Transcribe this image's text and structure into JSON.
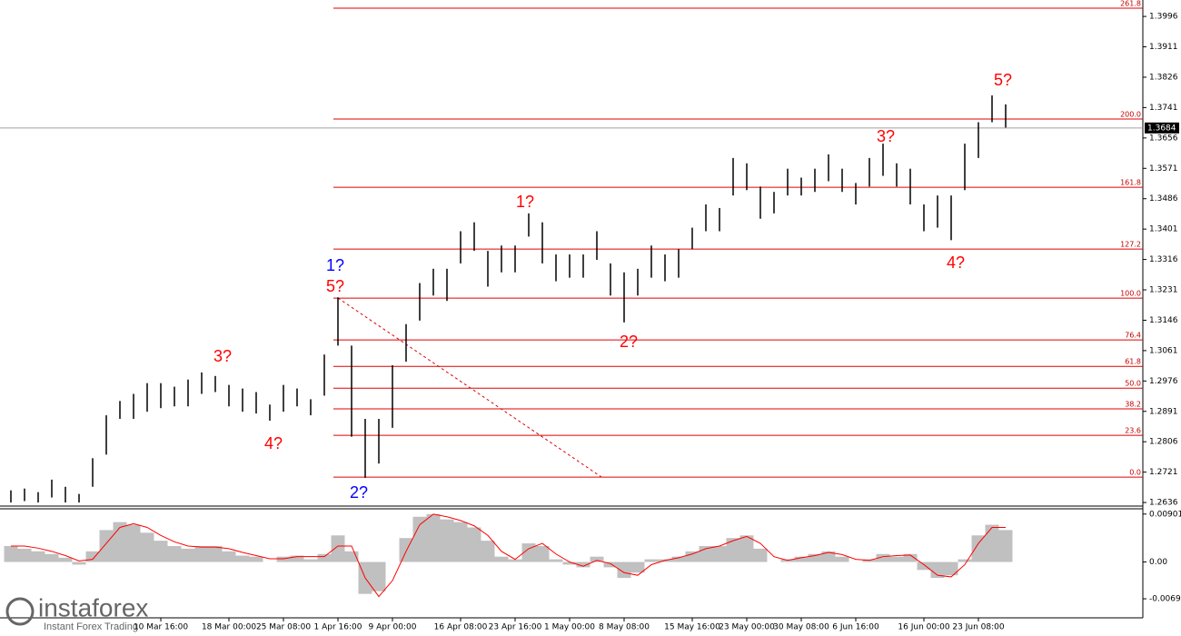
{
  "chart_data": [
    {
      "type": "ohlc",
      "watermark": "instaforex",
      "watermark_sub": "Instant Forex Trading",
      "categories": [
        null,
        null,
        null,
        null,
        null,
        null,
        null,
        null,
        null,
        null,
        null,
        "10 Mar 16:00",
        null,
        null,
        null,
        null,
        "18 Mar 00:00",
        null,
        null,
        null,
        "25 Mar 08:00",
        null,
        null,
        null,
        "1 Apr 16:00",
        null,
        null,
        null,
        "9 Apr 00:00",
        null,
        null,
        null,
        null,
        "16 Apr 08:00",
        null,
        null,
        null,
        "23 Apr 16:00",
        null,
        null,
        null,
        "1 May 00:00",
        null,
        null,
        null,
        "8 May 08:00",
        null,
        null,
        null,
        null,
        "15 May 16:00",
        null,
        null,
        null,
        "23 May 00:00",
        null,
        null,
        null,
        "30 May 08:00",
        null,
        null,
        null,
        "6 Jun 16:00",
        null,
        null,
        null,
        null,
        "16 Jun 00:00",
        null,
        null,
        null,
        "23 Jun 08:00",
        null,
        null
      ],
      "series": [
        {
          "name": "High",
          "color": "#000000",
          "values": [
            1.267,
            1.2675,
            1.2665,
            1.27,
            1.268,
            1.266,
            1.276,
            1.288,
            1.292,
            1.294,
            1.297,
            1.297,
            1.296,
            1.298,
            1.3,
            1.299,
            1.2965,
            1.2955,
            1.2945,
            1.291,
            1.2965,
            1.2955,
            1.2925,
            1.305,
            1.321,
            1.3075,
            1.287,
            1.287,
            1.302,
            1.3135,
            1.325,
            1.329,
            1.329,
            1.3395,
            1.342,
            1.334,
            1.3355,
            1.3355,
            1.3445,
            1.342,
            1.333,
            1.333,
            1.333,
            1.3395,
            1.3305,
            1.328,
            1.329,
            1.3355,
            1.333,
            1.3345,
            1.3405,
            1.347,
            1.346,
            1.36,
            1.3585,
            1.352,
            1.3505,
            1.357,
            1.3545,
            1.357,
            1.361,
            1.357,
            1.353,
            1.36,
            1.364,
            1.3585,
            1.357,
            1.347,
            1.3495,
            1.3495,
            1.364,
            1.37,
            1.3775,
            1.375
          ]
        },
        {
          "name": "Low",
          "color": "#000000",
          "values": [
            1.2636,
            1.264,
            1.2636,
            1.265,
            1.2636,
            1.2636,
            1.268,
            1.277,
            1.287,
            1.287,
            1.289,
            1.29,
            1.2905,
            1.2905,
            1.294,
            1.2945,
            1.2905,
            1.289,
            1.2885,
            1.2865,
            1.289,
            1.2905,
            1.288,
            1.2935,
            1.3075,
            1.282,
            1.2705,
            1.2745,
            1.2845,
            1.303,
            1.3145,
            1.3215,
            1.32,
            1.3305,
            1.334,
            1.324,
            1.328,
            1.328,
            1.338,
            1.3305,
            1.3255,
            1.3265,
            1.3265,
            1.3315,
            1.3215,
            1.314,
            1.3215,
            1.3265,
            1.3255,
            1.3265,
            1.3345,
            1.3395,
            1.3395,
            1.3495,
            1.351,
            1.343,
            1.3445,
            1.3495,
            1.3495,
            1.3505,
            1.3535,
            1.3505,
            1.347,
            1.352,
            1.355,
            1.352,
            1.347,
            1.3395,
            1.3405,
            1.337,
            1.351,
            1.36,
            1.37,
            1.3685
          ]
        }
      ],
      "ylim": [
        1.2626,
        1.4042
      ],
      "yticks": [
        1.2636,
        1.2721,
        1.2806,
        1.2891,
        1.2976,
        1.3061,
        1.3146,
        1.3231,
        1.3316,
        1.3401,
        1.3486,
        1.3571,
        1.3656,
        1.3741,
        1.3826,
        1.3911,
        1.3996
      ],
      "current_price": 1.3684,
      "fib_levels": [
        {
          "label": "0.0",
          "price": 1.2707
        },
        {
          "label": "23.6",
          "price": 1.2824
        },
        {
          "label": "38.2",
          "price": 1.2898
        },
        {
          "label": "50.0",
          "price": 1.2956
        },
        {
          "label": "61.8",
          "price": 1.3017
        },
        {
          "label": "76.4",
          "price": 1.3091
        },
        {
          "label": "100.0",
          "price": 1.3208
        },
        {
          "label": "127.2",
          "price": 1.3345
        },
        {
          "label": "161.8",
          "price": 1.3518
        },
        {
          "label": "200.0",
          "price": 1.3709
        },
        {
          "label": "261.8",
          "price": 1.4019
        }
      ],
      "fib_color": "#e00000",
      "annotations": [
        {
          "text": "1?",
          "color": "#0000ff"
        },
        {
          "text": "5?",
          "color": "#ff0000"
        },
        {
          "text": "2?",
          "color": "#0000ff"
        },
        {
          "text": "3?",
          "color": "#ff0000"
        },
        {
          "text": "4?",
          "color": "#ff0000"
        },
        {
          "text": "1?",
          "color": "#ff0000"
        },
        {
          "text": "2?",
          "color": "#ff0000"
        },
        {
          "text": "3?",
          "color": "#ff0000"
        },
        {
          "text": "4?",
          "color": "#ff0000"
        },
        {
          "text": "5?",
          "color": "#ff0000"
        }
      ]
    },
    {
      "type": "macd",
      "series": [
        {
          "name": "Histogram",
          "color": "#c0c0c0",
          "values": [
            0.003,
            0.0025,
            0.002,
            0.0015,
            0.0008,
            -0.0005,
            0.002,
            0.006,
            0.0075,
            0.007,
            0.0055,
            0.004,
            0.003,
            0.0025,
            0.003,
            0.003,
            0.002,
            0.0012,
            0.001,
            0.0,
            0.001,
            0.0012,
            0.0005,
            0.0015,
            0.005,
            0.002,
            -0.006,
            -0.0055,
            0.0,
            0.0045,
            0.0085,
            0.009,
            0.008,
            0.0075,
            0.0065,
            0.004,
            0.001,
            0.0005,
            0.0035,
            0.003,
            0.0005,
            -0.0005,
            -0.001,
            0.001,
            -0.001,
            -0.003,
            -0.002,
            0.0005,
            0.0005,
            0.001,
            0.002,
            0.003,
            0.003,
            0.0045,
            0.005,
            0.0025,
            0.0,
            0.0005,
            0.001,
            0.0015,
            0.002,
            0.001,
            0.0,
            0.0005,
            0.0015,
            0.001,
            0.0015,
            -0.0015,
            -0.003,
            -0.0025,
            0.0005,
            0.005,
            0.007,
            0.006
          ]
        },
        {
          "name": "Signal",
          "color": "#ff0000",
          "values": [
            0.003,
            0.003,
            0.0026,
            0.002,
            0.0012,
            0.0002,
            0.0005,
            0.0035,
            0.0065,
            0.0072,
            0.0065,
            0.005,
            0.0038,
            0.003,
            0.0028,
            0.0028,
            0.0025,
            0.0018,
            0.0012,
            0.0006,
            0.0006,
            0.001,
            0.001,
            0.001,
            0.003,
            0.003,
            -0.003,
            -0.0065,
            -0.0035,
            0.002,
            0.007,
            0.009,
            0.0085,
            0.0078,
            0.0068,
            0.005,
            0.002,
            0.0005,
            0.0025,
            0.0035,
            0.0015,
            0.0,
            -0.0008,
            0.0003,
            -0.0003,
            -0.002,
            -0.0025,
            -0.0005,
            0.0003,
            0.0008,
            0.0015,
            0.0025,
            0.003,
            0.004,
            0.0048,
            0.0035,
            0.001,
            0.0003,
            0.0008,
            0.0012,
            0.0018,
            0.0014,
            0.0005,
            0.0003,
            0.001,
            0.0012,
            0.0013,
            -0.0005,
            -0.0025,
            -0.0028,
            -0.0005,
            0.0035,
            0.0065,
            0.0065
          ]
        }
      ],
      "ylim": [
        -0.0105,
        0.01
      ],
      "yticks": [
        0.00901,
        {
          "value": 0,
          "label": "0.00"
        },
        -0.00692
      ]
    }
  ]
}
